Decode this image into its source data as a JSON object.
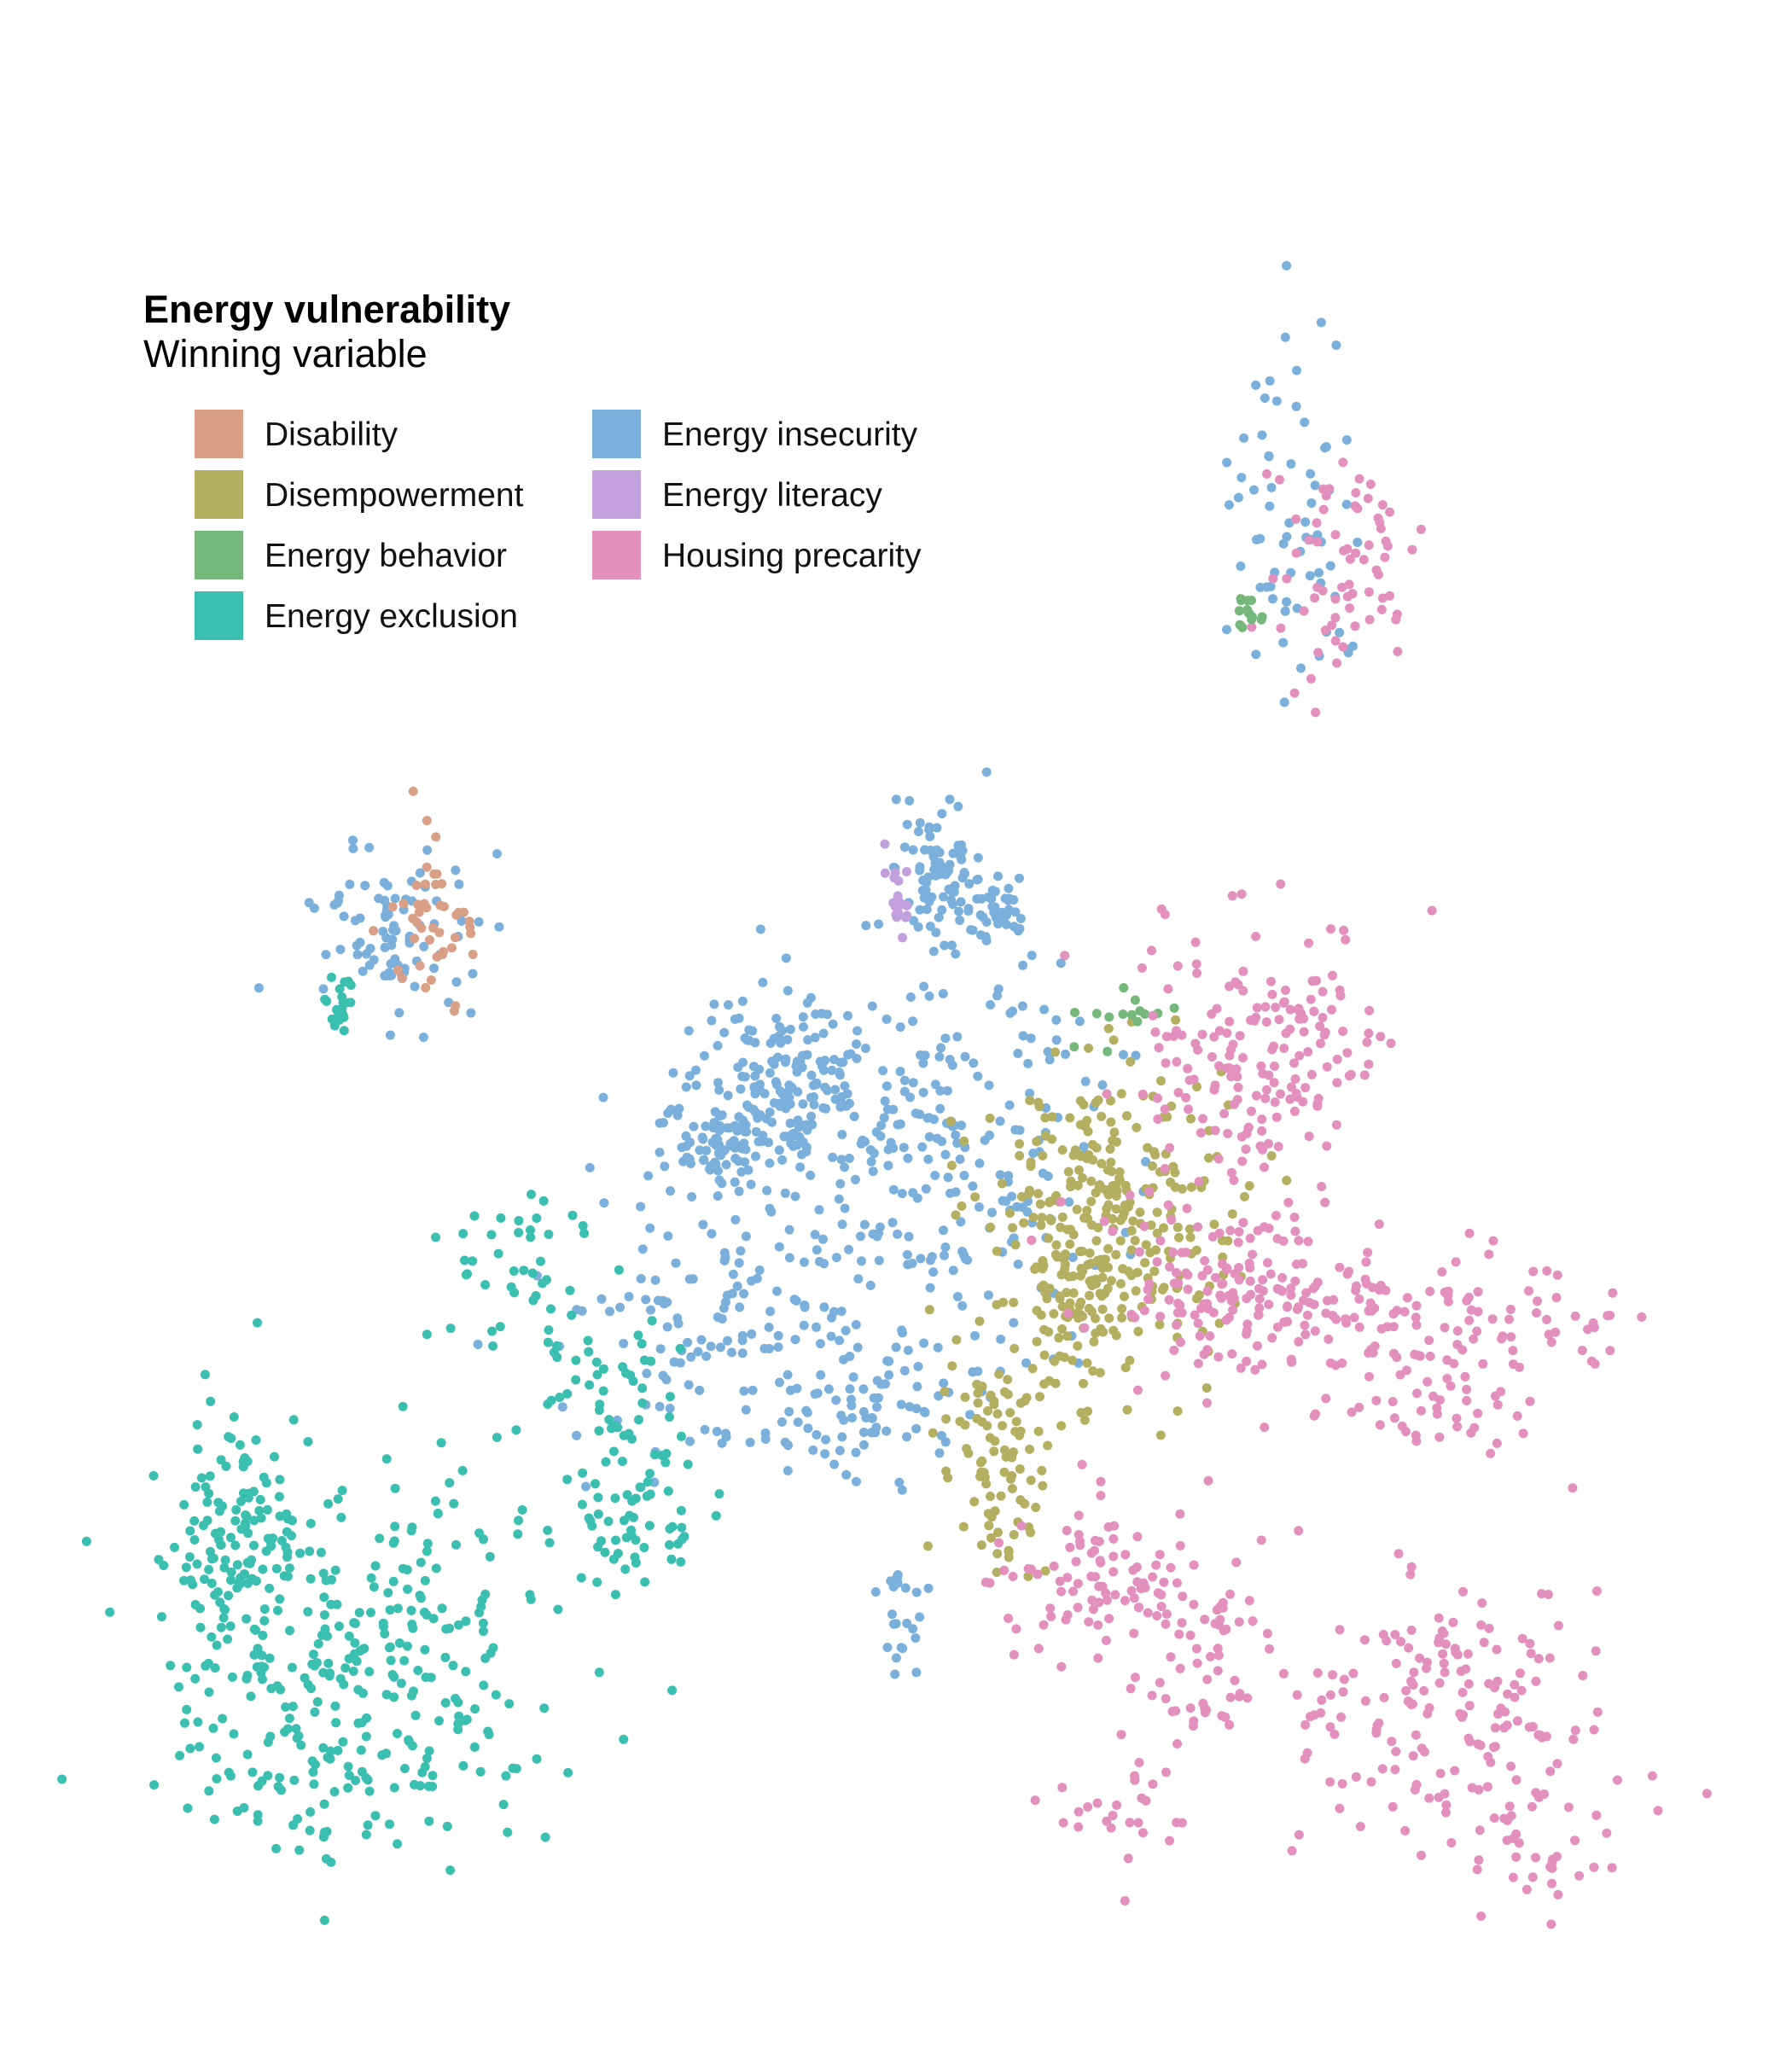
{
  "legend": {
    "title": "Energy vulnerability",
    "subtitle": "Winning variable",
    "items": [
      {
        "key": "disability",
        "label": "Disability",
        "color": "#DA9F87"
      },
      {
        "key": "disempowerment",
        "label": "Disempowerment",
        "color": "#B4AF61"
      },
      {
        "key": "energy_behavior",
        "label": "Energy behavior",
        "color": "#76B87C"
      },
      {
        "key": "energy_exclusion",
        "label": "Energy exclusion",
        "color": "#3BBFB0"
      },
      {
        "key": "energy_insecurity",
        "label": "Energy insecurity",
        "color": "#7BB0DC"
      },
      {
        "key": "energy_literacy",
        "label": "Energy literacy",
        "color": "#C29FDD"
      },
      {
        "key": "housing_precarity",
        "label": "Housing precarity",
        "color": "#E390BE"
      }
    ]
  },
  "map": {
    "point_color_by": "winning variable",
    "projection": "Europe"
  }
}
